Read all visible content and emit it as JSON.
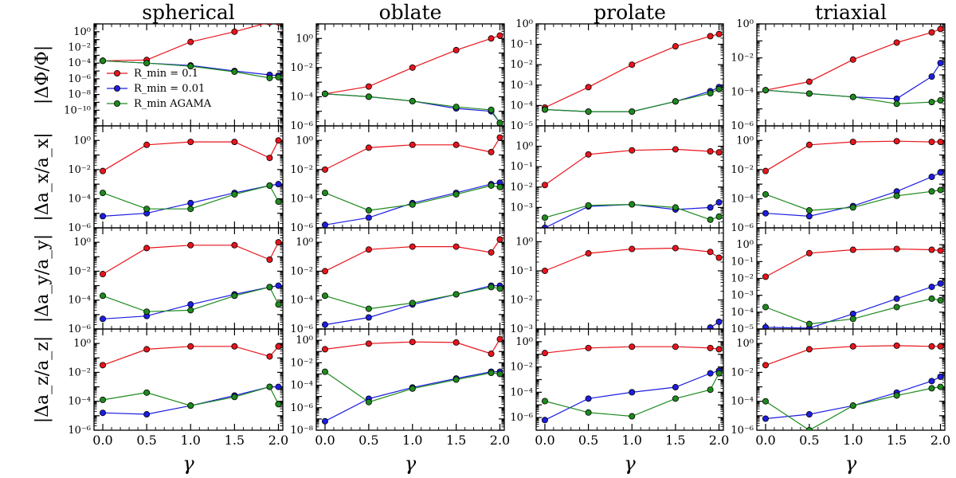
{
  "figure": {
    "column_titles": [
      "spherical",
      "oblate",
      "prolate",
      "triaxial"
    ],
    "row_labels": [
      "|ΔΦ/Φ|",
      "|Δa_x/a_x|",
      "|Δa_y/a_y|",
      "|Δa_z/a_z|"
    ],
    "xlabel": "γ",
    "x_ticks": [
      0.0,
      0.5,
      1.0,
      1.5,
      2.0
    ],
    "x_tick_labels": [
      "0.0",
      "0.5",
      "1.0",
      "1.5",
      "2.0"
    ],
    "xlim": [
      -0.1,
      2.05
    ],
    "legend": {
      "placement": "spherical potential panel, lower-left",
      "entries": [
        "R_min = 0.1",
        "R_min = 0.01",
        "R_min AGAMA"
      ]
    },
    "colors": {
      "red": "#e8141c",
      "blue": "#1d1de0",
      "green": "#1e8a1e"
    }
  },
  "chart_data": {
    "type": "line",
    "yscale": "log",
    "x": [
      0.0,
      0.5,
      1.0,
      1.5,
      1.9,
      2.0
    ],
    "series_labels": [
      "R_min = 0.1",
      "R_min = 0.01",
      "R_min AGAMA"
    ],
    "series_colors": [
      "#e8141c",
      "#1d1de0",
      "#1e8a1e"
    ],
    "panels": [
      {
        "row": 0,
        "col": 0,
        "ylim": [
          1e-12,
          10
        ],
        "yticks": [
          -10,
          -8,
          -6,
          -4,
          -2,
          0
        ],
        "series": [
          {
            "name": "R_min = 0.1",
            "logy": [
              -3.7,
              -3.6,
              -1.3,
              0.0,
              1.2,
              1.2
            ]
          },
          {
            "name": "R_min = 0.01",
            "logy": [
              -3.7,
              -4.0,
              -4.3,
              -5.0,
              -5.5,
              -5.6
            ]
          },
          {
            "name": "R_min AGAMA",
            "logy": [
              -3.7,
              -4.0,
              -4.4,
              -5.1,
              -5.9,
              -5.8
            ]
          }
        ]
      },
      {
        "row": 0,
        "col": 1,
        "ylim": [
          1e-06,
          10
        ],
        "yticks": [
          -6,
          -4,
          -2,
          0
        ],
        "series": [
          {
            "name": "R_min = 0.1",
            "logy": [
              -3.8,
              -3.3,
              -2.0,
              -0.8,
              0.0,
              0.2
            ]
          },
          {
            "name": "R_min = 0.01",
            "logy": [
              -3.8,
              -4.0,
              -4.3,
              -4.8,
              -5.0,
              -5.8
            ]
          },
          {
            "name": "R_min AGAMA",
            "logy": [
              -3.8,
              -4.0,
              -4.3,
              -4.7,
              -4.9,
              -5.8
            ]
          }
        ]
      },
      {
        "row": 0,
        "col": 2,
        "ylim": [
          1e-05,
          1
        ],
        "yticks": [
          -5,
          -4,
          -3,
          -2,
          -1,
          0
        ],
        "series": [
          {
            "name": "R_min = 0.1",
            "logy": [
              -4.1,
              -3.1,
              -2.0,
              -1.1,
              -0.6,
              -0.5
            ]
          },
          {
            "name": "R_min = 0.01",
            "logy": [
              -4.2,
              -4.3,
              -4.3,
              -3.8,
              -3.3,
              -3.1
            ]
          },
          {
            "name": "R_min AGAMA",
            "logy": [
              -4.2,
              -4.3,
              -4.3,
              -3.8,
              -3.4,
              -3.2
            ]
          }
        ]
      },
      {
        "row": 0,
        "col": 3,
        "ylim": [
          1e-06,
          1
        ],
        "yticks": [
          -6,
          -4,
          -2,
          0
        ],
        "series": [
          {
            "name": "R_min = 0.1",
            "logy": [
              -3.9,
              -3.4,
              -2.1,
              -1.1,
              -0.5,
              -0.3
            ]
          },
          {
            "name": "R_min = 0.01",
            "logy": [
              -3.9,
              -4.1,
              -4.3,
              -4.4,
              -3.1,
              -2.3
            ]
          },
          {
            "name": "R_min AGAMA",
            "logy": [
              -3.9,
              -4.1,
              -4.3,
              -4.7,
              -4.6,
              -4.5
            ]
          }
        ]
      },
      {
        "row": 1,
        "col": 0,
        "ylim": [
          1e-06,
          10
        ],
        "yticks": [
          -6,
          -4,
          -2,
          0
        ],
        "series": [
          {
            "name": "R_min = 0.1",
            "logy": [
              -2.1,
              -0.3,
              -0.1,
              -0.1,
              -1.2,
              0.0
            ]
          },
          {
            "name": "R_min = 0.01",
            "logy": [
              -5.2,
              -5.0,
              -4.3,
              -3.6,
              -3.1,
              -3.0
            ]
          },
          {
            "name": "R_min AGAMA",
            "logy": [
              -3.6,
              -4.7,
              -4.7,
              -3.7,
              -3.1,
              -4.2
            ]
          }
        ]
      },
      {
        "row": 1,
        "col": 1,
        "ylim": [
          1e-06,
          10
        ],
        "yticks": [
          -6,
          -4,
          -2,
          0
        ],
        "series": [
          {
            "name": "R_min = 0.1",
            "logy": [
              -2.0,
              -0.5,
              -0.3,
              -0.3,
              -0.8,
              0.2
            ]
          },
          {
            "name": "R_min = 0.01",
            "logy": [
              -5.8,
              -5.3,
              -4.3,
              -3.6,
              -3.0,
              -2.9
            ]
          },
          {
            "name": "R_min AGAMA",
            "logy": [
              -3.6,
              -4.8,
              -4.4,
              -3.7,
              -3.1,
              -3.2
            ]
          }
        ]
      },
      {
        "row": 1,
        "col": 2,
        "ylim": [
          0.0001,
          10
        ],
        "yticks": [
          -3,
          -2,
          -1,
          0
        ],
        "series": [
          {
            "name": "R_min = 0.1",
            "logy": [
              -1.9,
              -0.4,
              -0.2,
              -0.15,
              -0.25,
              -0.3
            ]
          },
          {
            "name": "R_min = 0.01",
            "logy": [
              -4.0,
              -2.95,
              -2.85,
              -3.1,
              -3.0,
              -2.75
            ]
          },
          {
            "name": "R_min AGAMA",
            "logy": [
              -3.5,
              -2.9,
              -2.85,
              -3.0,
              -3.6,
              -3.45
            ]
          }
        ]
      },
      {
        "row": 1,
        "col": 3,
        "ylim": [
          1e-06,
          10
        ],
        "yticks": [
          -6,
          -4,
          -2,
          0
        ],
        "series": [
          {
            "name": "R_min = 0.1",
            "logy": [
              -2.1,
              -0.3,
              -0.1,
              -0.05,
              -0.1,
              -0.1
            ]
          },
          {
            "name": "R_min = 0.01",
            "logy": [
              -5.0,
              -5.2,
              -4.5,
              -3.5,
              -2.5,
              -2.2
            ]
          },
          {
            "name": "R_min AGAMA",
            "logy": [
              -3.7,
              -4.8,
              -4.6,
              -3.8,
              -3.5,
              -3.4
            ]
          }
        ]
      },
      {
        "row": 2,
        "col": 0,
        "ylim": [
          1e-06,
          10
        ],
        "yticks": [
          -6,
          -4,
          -2,
          0
        ],
        "series": [
          {
            "name": "R_min = 0.1",
            "logy": [
              -2.2,
              -0.4,
              -0.2,
              -0.2,
              -1.2,
              0.0
            ]
          },
          {
            "name": "R_min = 0.01",
            "logy": [
              -5.3,
              -5.1,
              -4.3,
              -3.6,
              -3.1,
              -3.0
            ]
          },
          {
            "name": "R_min AGAMA",
            "logy": [
              -3.7,
              -4.8,
              -4.7,
              -3.7,
              -3.1,
              -4.3
            ]
          }
        ]
      },
      {
        "row": 2,
        "col": 1,
        "ylim": [
          1e-06,
          10
        ],
        "yticks": [
          -6,
          -4,
          -2,
          0
        ],
        "series": [
          {
            "name": "R_min = 0.1",
            "logy": [
              -2.0,
              -0.5,
              -0.3,
              -0.3,
              -0.7,
              0.2
            ]
          },
          {
            "name": "R_min = 0.01",
            "logy": [
              -5.7,
              -5.2,
              -4.3,
              -3.6,
              -3.0,
              -3.0
            ]
          },
          {
            "name": "R_min AGAMA",
            "logy": [
              -3.7,
              -4.6,
              -4.2,
              -3.6,
              -3.1,
              -3.2
            ]
          }
        ]
      },
      {
        "row": 2,
        "col": 2,
        "ylim": [
          0.001,
          3
        ],
        "yticks": [
          -3,
          -2,
          -1,
          0
        ],
        "series": [
          {
            "name": "R_min = 0.1",
            "logy": [
              -1.0,
              -0.4,
              -0.25,
              -0.22,
              -0.35,
              -0.55
            ]
          },
          {
            "name": "R_min = 0.01",
            "logy": [
              null,
              null,
              null,
              null,
              -2.95,
              -2.75
            ]
          },
          {
            "name": "R_min AGAMA",
            "logy": [
              null,
              null,
              null,
              null,
              null,
              null
            ]
          }
        ]
      },
      {
        "row": 2,
        "col": 3,
        "ylim": [
          1e-05,
          10
        ],
        "yticks": [
          -5,
          -4,
          -3,
          -2,
          -1,
          0
        ],
        "series": [
          {
            "name": "R_min = 0.1",
            "logy": [
              -1.9,
              -0.5,
              -0.3,
              -0.25,
              -0.3,
              -0.35
            ]
          },
          {
            "name": "R_min = 0.01",
            "logy": [
              -4.9,
              -4.95,
              -4.1,
              -3.2,
              -2.5,
              -2.3
            ]
          },
          {
            "name": "R_min AGAMA",
            "logy": [
              -3.7,
              -4.7,
              -4.4,
              -3.7,
              -3.2,
              -3.3
            ]
          }
        ]
      },
      {
        "row": 3,
        "col": 0,
        "ylim": [
          1e-06,
          10
        ],
        "yticks": [
          -6,
          -4,
          -2,
          0
        ],
        "series": [
          {
            "name": "R_min = 0.1",
            "logy": [
              -1.5,
              -0.4,
              -0.2,
              -0.2,
              -0.9,
              -0.2
            ]
          },
          {
            "name": "R_min = 0.01",
            "logy": [
              -4.8,
              -4.9,
              -4.3,
              -3.6,
              -3.0,
              -3.0
            ]
          },
          {
            "name": "R_min AGAMA",
            "logy": [
              -3.9,
              -3.4,
              -4.3,
              -3.7,
              -3.0,
              -4.2
            ]
          }
        ]
      },
      {
        "row": 3,
        "col": 1,
        "ylim": [
          1e-08,
          10
        ],
        "yticks": [
          -8,
          -6,
          -4,
          -2,
          0
        ],
        "series": [
          {
            "name": "R_min = 0.1",
            "logy": [
              -0.8,
              -0.3,
              -0.15,
              -0.2,
              -1.2,
              0.1
            ]
          },
          {
            "name": "R_min = 0.01",
            "logy": [
              -7.2,
              -5.2,
              -4.2,
              -3.4,
              -2.8,
              -2.8
            ]
          },
          {
            "name": "R_min AGAMA",
            "logy": [
              -2.8,
              -5.5,
              -4.3,
              -3.5,
              -2.9,
              -3.0
            ]
          }
        ]
      },
      {
        "row": 3,
        "col": 2,
        "ylim": [
          1e-07,
          10
        ],
        "yticks": [
          -6,
          -4,
          -2,
          0
        ],
        "series": [
          {
            "name": "R_min = 0.1",
            "logy": [
              -0.9,
              -0.5,
              -0.4,
              -0.4,
              -0.5,
              -0.6
            ]
          },
          {
            "name": "R_min = 0.01",
            "logy": [
              -6.2,
              -4.5,
              -4.0,
              -3.6,
              -2.5,
              -2.3
            ]
          },
          {
            "name": "R_min AGAMA",
            "logy": [
              -4.7,
              -5.6,
              -5.9,
              -4.5,
              -3.8,
              -2.5
            ]
          }
        ]
      },
      {
        "row": 3,
        "col": 3,
        "ylim": [
          1e-06,
          10
        ],
        "yticks": [
          -6,
          -4,
          -2,
          0
        ],
        "series": [
          {
            "name": "R_min = 0.1",
            "logy": [
              -1.5,
              -0.4,
              -0.2,
              -0.15,
              -0.2,
              -0.2
            ]
          },
          {
            "name": "R_min = 0.01",
            "logy": [
              -5.2,
              -4.9,
              -4.3,
              -3.4,
              -2.6,
              -2.3
            ]
          },
          {
            "name": "R_min AGAMA",
            "logy": [
              -4.0,
              -6.0,
              -4.3,
              -3.6,
              -3.1,
              -3.0
            ]
          }
        ]
      }
    ]
  }
}
